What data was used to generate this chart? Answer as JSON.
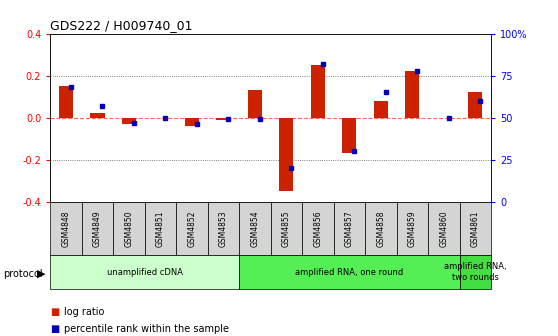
{
  "title": "GDS222 / H009740_01",
  "samples": [
    "GSM4848",
    "GSM4849",
    "GSM4850",
    "GSM4851",
    "GSM4852",
    "GSM4853",
    "GSM4854",
    "GSM4855",
    "GSM4856",
    "GSM4857",
    "GSM4858",
    "GSM4859",
    "GSM4860",
    "GSM4861"
  ],
  "log_ratio": [
    0.15,
    0.02,
    -0.03,
    0.0,
    -0.04,
    -0.01,
    0.13,
    -0.35,
    0.25,
    -0.17,
    0.08,
    0.22,
    0.0,
    0.12
  ],
  "percentile_rank": [
    68,
    57,
    47,
    50,
    46,
    49,
    49,
    20,
    82,
    30,
    65,
    78,
    50,
    60
  ],
  "ylim_left": [
    -0.4,
    0.4
  ],
  "ylim_right": [
    0,
    100
  ],
  "yticks_left": [
    -0.4,
    -0.2,
    0.0,
    0.2,
    0.4
  ],
  "yticks_right": [
    0,
    25,
    50,
    75,
    100
  ],
  "ytick_labels_right": [
    "0",
    "25",
    "50",
    "75",
    "100%"
  ],
  "bar_color": "#cc2200",
  "dot_color": "#0000bb",
  "bg_color": "#ffffff",
  "protocol_groups": [
    {
      "label": "unamplified cDNA",
      "start": 0,
      "end": 5,
      "color": "#ccffcc"
    },
    {
      "label": "amplified RNA, one round",
      "start": 6,
      "end": 12,
      "color": "#55ee55"
    },
    {
      "label": "amplified RNA,\ntwo rounds",
      "start": 13,
      "end": 13,
      "color": "#44dd44"
    }
  ],
  "legend_bar_label": "log ratio",
  "legend_dot_label": "percentile rank within the sample",
  "zero_line_color": "#ff6666",
  "grid_line_color": "#555555"
}
